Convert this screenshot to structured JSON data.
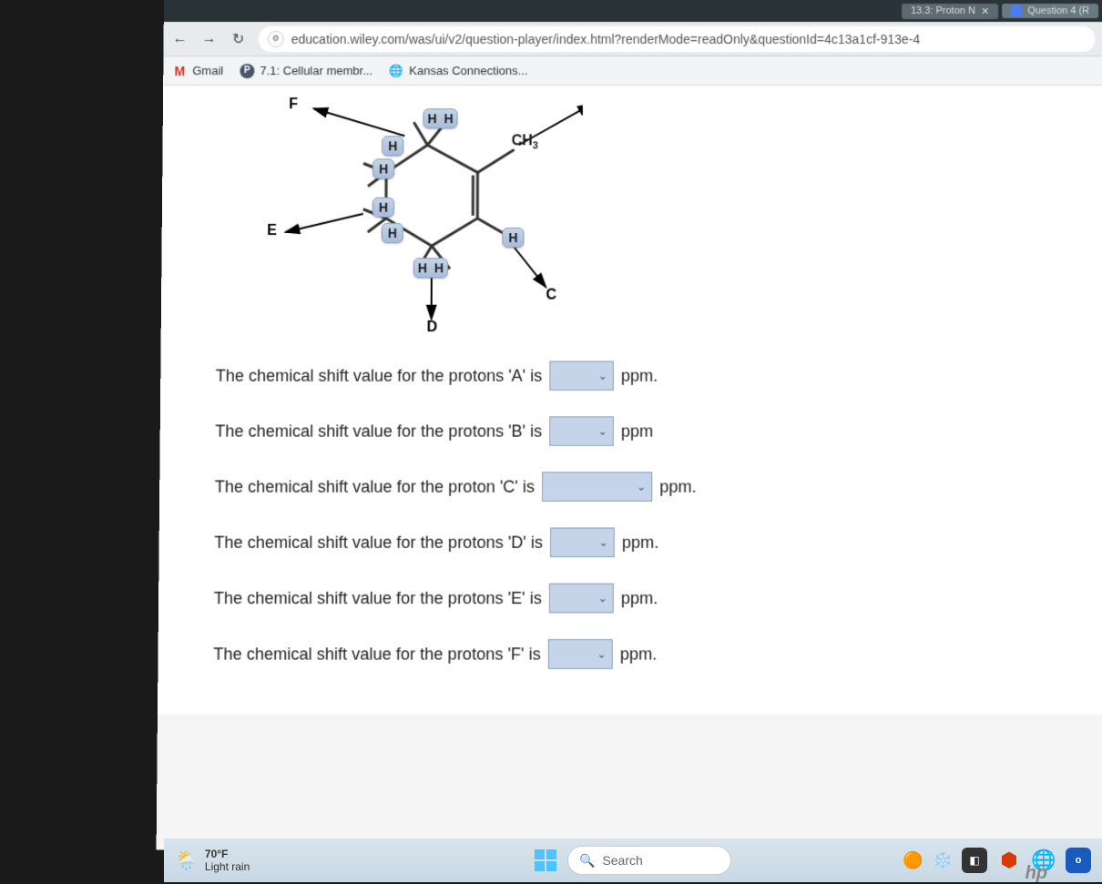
{
  "topTabs": {
    "left": "13.3: Proton N",
    "right": "Question 4 (R"
  },
  "url": "education.wiley.com/was/ui/v2/question-player/index.html?renderMode=readOnly&questionId=4c13a1cf-913e-4",
  "bookmarks": {
    "gmail": "Gmail",
    "cellular": "7.1: Cellular membr...",
    "kansas": "Kansas Connections..."
  },
  "molecule": {
    "labels": {
      "F": "F",
      "E": "E",
      "D": "D",
      "C": "C"
    },
    "ch3": "CH",
    "ch3sub": "3",
    "H": "H"
  },
  "questions": [
    {
      "pre": "The chemical shift value for the protons 'A' is",
      "unit": "ppm.",
      "wide": false
    },
    {
      "pre": "The chemical shift value for the protons 'B' is",
      "unit": "ppm",
      "wide": false
    },
    {
      "pre": "The chemical shift value for the proton 'C' is",
      "unit": "ppm.",
      "wide": true
    },
    {
      "pre": "The chemical shift value for the protons 'D' is",
      "unit": "ppm.",
      "wide": false
    },
    {
      "pre": "The chemical shift value for the protons 'E' is",
      "unit": "ppm.",
      "wide": false
    },
    {
      "pre": "The chemical shift value for the protons 'F' is",
      "unit": "ppm.",
      "wide": false
    }
  ],
  "taskbar": {
    "temp": "70°F",
    "cond": "Light rain",
    "search": "Search"
  },
  "colors": {
    "hbox_bg_top": "#c5d4e8",
    "hbox_bg_bot": "#a8bdd8",
    "hbox_border": "#8aa0c0"
  }
}
